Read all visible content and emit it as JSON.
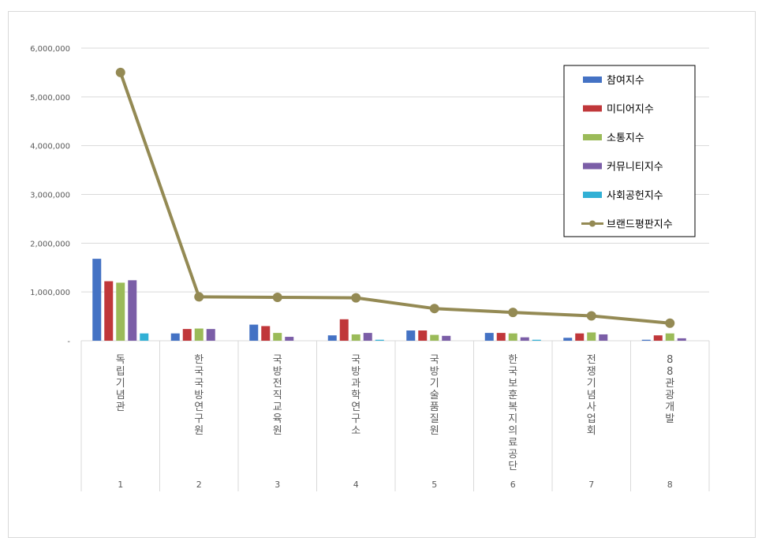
{
  "chart_data": {
    "type": "bar",
    "title": "",
    "xlabel": "",
    "ylabel": "",
    "ylim": [
      0,
      6000000
    ],
    "yticks": [
      "-",
      "1,000,000",
      "2,000,000",
      "3,000,000",
      "4,000,000",
      "5,000,000",
      "6,000,000"
    ],
    "grid": true,
    "legend_position": "top-right",
    "categories": [
      {
        "name": "독립기념관",
        "rank": "1"
      },
      {
        "name": "한국국방연구원",
        "rank": "2"
      },
      {
        "name": "국방전직교육원",
        "rank": "3"
      },
      {
        "name": "국방과학연구소",
        "rank": "4"
      },
      {
        "name": "국방기술품질원",
        "rank": "5"
      },
      {
        "name": "한국보훈복지의료공단",
        "rank": "6"
      },
      {
        "name": "전쟁기념사업회",
        "rank": "7"
      },
      {
        "name": "88관광개발",
        "rank": "8"
      }
    ],
    "series": [
      {
        "name": "참여지수",
        "kind": "bar",
        "color": "#4472c4",
        "values": [
          1680000,
          150000,
          330000,
          110000,
          210000,
          160000,
          60000,
          20000
        ]
      },
      {
        "name": "미디어지수",
        "kind": "bar",
        "color": "#c0373a",
        "values": [
          1220000,
          240000,
          300000,
          440000,
          210000,
          160000,
          150000,
          110000
        ]
      },
      {
        "name": "소통지수",
        "kind": "bar",
        "color": "#9bbb59",
        "values": [
          1190000,
          250000,
          160000,
          130000,
          120000,
          150000,
          170000,
          150000
        ]
      },
      {
        "name": "커뮤니티지수",
        "kind": "bar",
        "color": "#7b5ea7",
        "values": [
          1240000,
          240000,
          80000,
          160000,
          100000,
          70000,
          130000,
          50000
        ]
      },
      {
        "name": "사회공헌지수",
        "kind": "bar",
        "color": "#31b0d5",
        "values": [
          150000,
          0,
          0,
          20000,
          0,
          20000,
          0,
          0
        ]
      },
      {
        "name": "브랜드평판지수",
        "kind": "line",
        "color": "#948a54",
        "values": [
          5500000,
          900000,
          890000,
          880000,
          660000,
          580000,
          510000,
          360000
        ]
      }
    ]
  }
}
